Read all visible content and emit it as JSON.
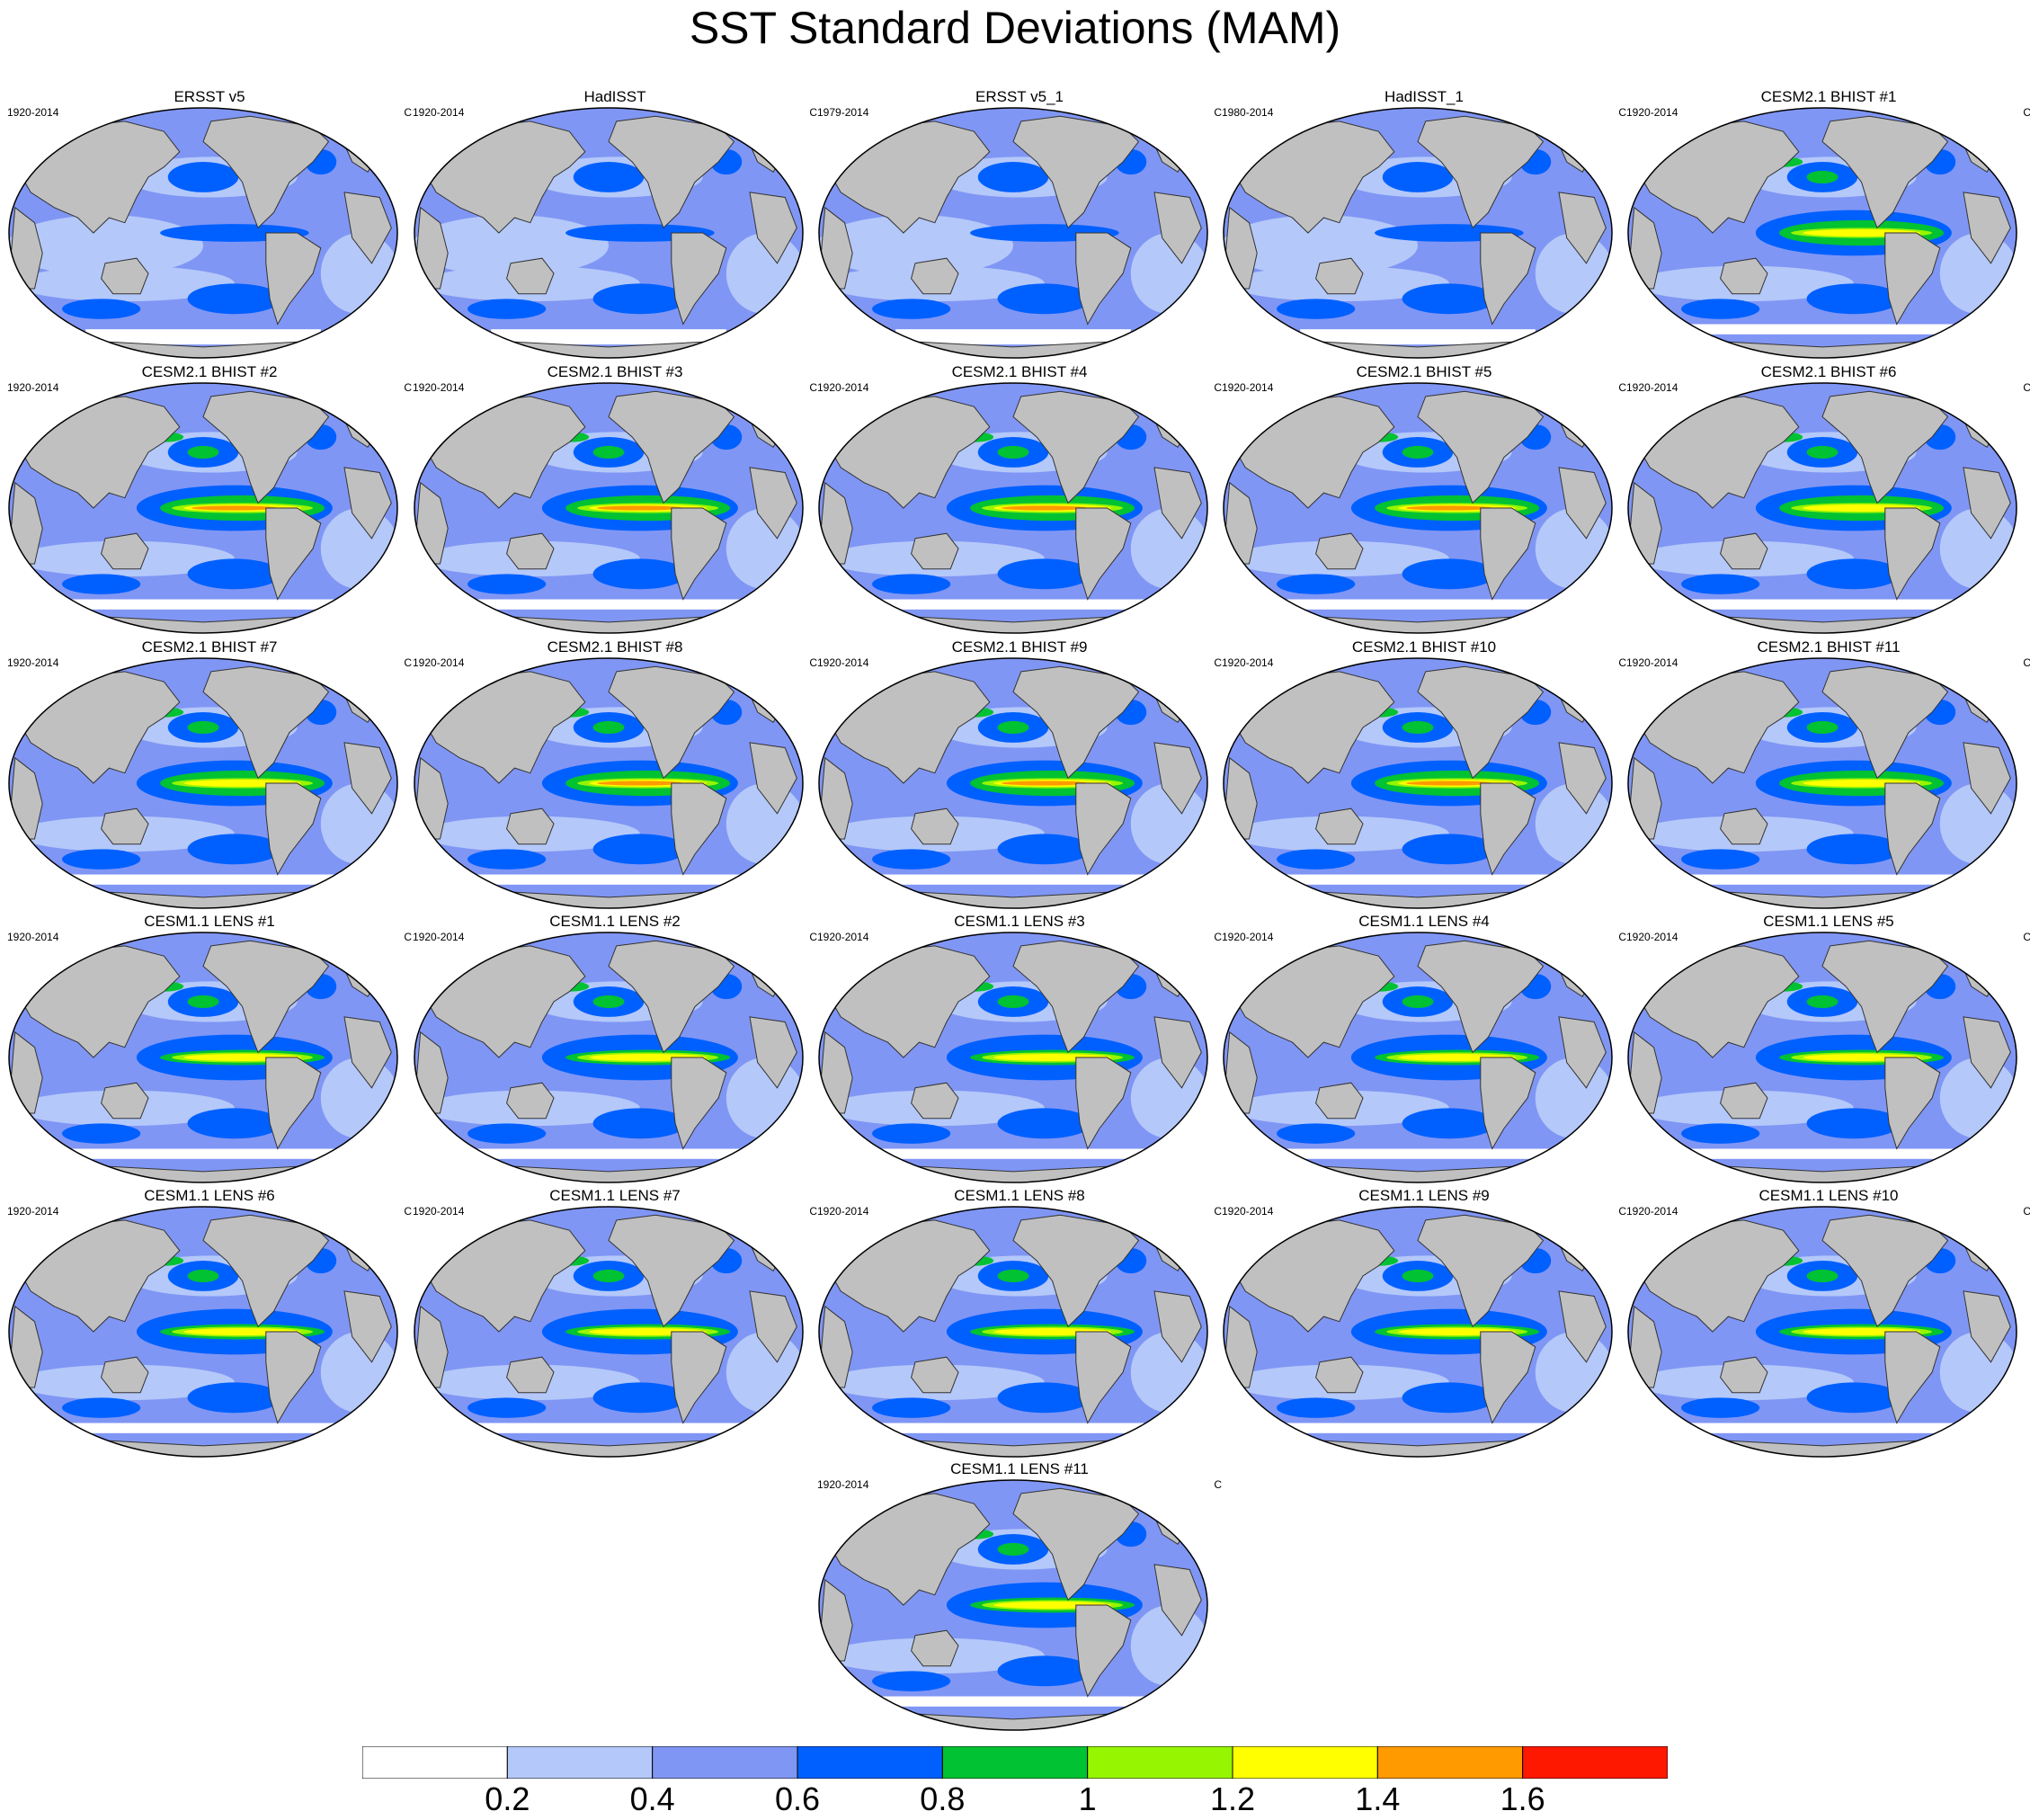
{
  "figure": {
    "title": "SST Standard Deviations (MAM)",
    "units": "C"
  },
  "panels": [
    {
      "title": "ERSST v5",
      "period": "1920-2014",
      "intensity": 0.55,
      "type": "obs"
    },
    {
      "title": "HadISST",
      "period": "1920-2014",
      "intensity": 0.5,
      "type": "obs"
    },
    {
      "title": "ERSST v5_1",
      "period": "1979-2014",
      "intensity": 0.55,
      "type": "obs"
    },
    {
      "title": "HadISST_1",
      "period": "1980-2014",
      "intensity": 0.5,
      "type": "obs"
    },
    {
      "title": "CESM2.1 BHIST #1",
      "period": "1920-2014",
      "intensity": 1.1,
      "type": "cesm2"
    },
    {
      "title": "CESM2.1 BHIST #2",
      "period": "1920-2014",
      "intensity": 1.3,
      "type": "cesm2"
    },
    {
      "title": "CESM2.1 BHIST #3",
      "period": "1920-2014",
      "intensity": 1.35,
      "type": "cesm2"
    },
    {
      "title": "CESM2.1 BHIST #4",
      "period": "1920-2014",
      "intensity": 1.25,
      "type": "cesm2"
    },
    {
      "title": "CESM2.1 BHIST #5",
      "period": "1920-2014",
      "intensity": 1.3,
      "type": "cesm2"
    },
    {
      "title": "CESM2.1 BHIST #6",
      "period": "1920-2014",
      "intensity": 1.15,
      "type": "cesm2"
    },
    {
      "title": "CESM2.1 BHIST #7",
      "period": "1920-2014",
      "intensity": 1.2,
      "type": "cesm2"
    },
    {
      "title": "CESM2.1 BHIST #8",
      "period": "1920-2014",
      "intensity": 1.3,
      "type": "cesm2"
    },
    {
      "title": "CESM2.1 BHIST #9",
      "period": "1920-2014",
      "intensity": 1.3,
      "type": "cesm2"
    },
    {
      "title": "CESM2.1 BHIST #10",
      "period": "1920-2014",
      "intensity": 1.35,
      "type": "cesm2"
    },
    {
      "title": "CESM2.1 BHIST #11",
      "period": "1920-2014",
      "intensity": 1.15,
      "type": "cesm2"
    },
    {
      "title": "CESM1.1 LENS #1",
      "period": "1920-2014",
      "intensity": 1.15,
      "type": "lens"
    },
    {
      "title": "CESM1.1 LENS #2",
      "period": "1920-2014",
      "intensity": 1.0,
      "type": "lens"
    },
    {
      "title": "CESM1.1 LENS #3",
      "period": "1920-2014",
      "intensity": 1.1,
      "type": "lens"
    },
    {
      "title": "CESM1.1 LENS #4",
      "period": "1920-2014",
      "intensity": 1.1,
      "type": "lens"
    },
    {
      "title": "CESM1.1 LENS #5",
      "period": "1920-2014",
      "intensity": 1.0,
      "type": "lens"
    },
    {
      "title": "CESM1.1 LENS #6",
      "period": "1920-2014",
      "intensity": 1.1,
      "type": "lens"
    },
    {
      "title": "CESM1.1 LENS #7",
      "period": "1920-2014",
      "intensity": 1.05,
      "type": "lens"
    },
    {
      "title": "CESM1.1 LENS #8",
      "period": "1920-2014",
      "intensity": 1.05,
      "type": "lens"
    },
    {
      "title": "CESM1.1 LENS #9",
      "period": "1920-2014",
      "intensity": 1.05,
      "type": "lens"
    },
    {
      "title": "CESM1.1 LENS #10",
      "period": "1920-2014",
      "intensity": 1.05,
      "type": "lens"
    },
    {
      "title": "CESM1.1 LENS #11",
      "period": "1920-2014",
      "intensity": 1.1,
      "type": "lens"
    }
  ],
  "colorbar": {
    "colors": [
      "#ffffff",
      "#b4c8fa",
      "#8096f4",
      "#0060ff",
      "#00c232",
      "#96f500",
      "#ffff00",
      "#ff9a00",
      "#ff1800"
    ],
    "ticks": [
      "0.2",
      "0.4",
      "0.6",
      "0.8",
      "1",
      "1.2",
      "1.4",
      "1.6"
    ]
  },
  "colors": {
    "land": "#c0c0c0",
    "ocean_low": "#b4c8fa",
    "ocean_mid": "#8096f4",
    "ocean_high": "#0060ff"
  }
}
